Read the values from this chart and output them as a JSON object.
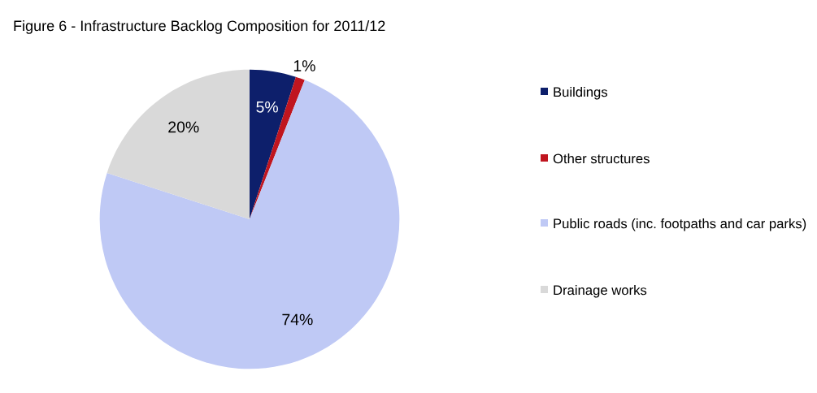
{
  "chart_data": {
    "type": "pie",
    "title": "Figure 6 - Infrastructure Backlog Composition for 2011/12",
    "categories": [
      "Buildings",
      "Other structures",
      "Public roads (inc. footpaths and car parks)",
      "Drainage works"
    ],
    "values": [
      5,
      1,
      74,
      20
    ],
    "colors": [
      "#0d1f6b",
      "#c0151f",
      "#bfc9f5",
      "#d9d9d9"
    ],
    "value_labels": [
      "5%",
      "1%",
      "74%",
      "20%"
    ],
    "legend": "right"
  }
}
